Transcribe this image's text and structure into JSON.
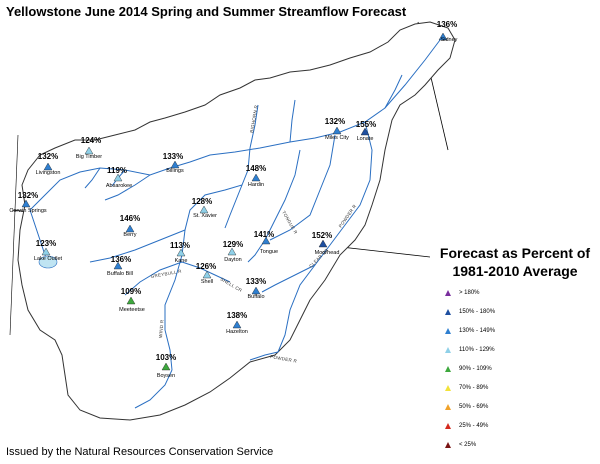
{
  "title": "Yellowstone June 2014 Spring and Summer Streamflow Forecast",
  "footer": "Issued by the Natural Resources Conservation Service",
  "legend": {
    "title_line1": "Forecast as Percent of",
    "title_line2": "1981-2010 Average",
    "items": [
      {
        "label": "> 180%",
        "color": "#7a2e9e"
      },
      {
        "label": "150% - 180%",
        "color": "#1e4fa0"
      },
      {
        "label": "130% - 149%",
        "color": "#2f7fd0"
      },
      {
        "label": "110% - 129%",
        "color": "#8fd0e8"
      },
      {
        "label": "90% - 109%",
        "color": "#3da83d"
      },
      {
        "label": "70% - 89%",
        "color": "#f2e23a"
      },
      {
        "label": "50% - 69%",
        "color": "#f0a22a"
      },
      {
        "label": "25% - 49%",
        "color": "#d42a1e"
      },
      {
        "label": "< 25%",
        "color": "#7a1414"
      }
    ]
  },
  "sites": [
    {
      "name": "Sidney",
      "percent": "136%",
      "category": 2
    },
    {
      "name": "Miles City",
      "percent": "132%",
      "category": 2
    },
    {
      "name": "Lonate",
      "percent": "155%",
      "category": 1
    },
    {
      "name": "Big Timber",
      "percent": "124%",
      "category": 3
    },
    {
      "name": "Livingston",
      "percent": "132%",
      "category": 2
    },
    {
      "name": "Absarokee",
      "percent": "119%",
      "category": 3
    },
    {
      "name": "Billings",
      "percent": "133%",
      "category": 2
    },
    {
      "name": "Hardin",
      "percent": "148%",
      "category": 2
    },
    {
      "name": "Corwin Springs",
      "percent": "132%",
      "category": 2
    },
    {
      "name": "St. Xavier",
      "percent": "128%",
      "category": 3
    },
    {
      "name": "Berry",
      "percent": "146%",
      "category": 2
    },
    {
      "name": "Lake Outlet",
      "percent": "123%",
      "category": 3
    },
    {
      "name": "Kane",
      "percent": "113%",
      "category": 3
    },
    {
      "name": "Dayton",
      "percent": "129%",
      "category": 3
    },
    {
      "name": "Tongue",
      "percent": "141%",
      "category": 2
    },
    {
      "name": "Moorhead",
      "percent": "152%",
      "category": 1
    },
    {
      "name": "Buffalo Bill",
      "percent": "136%",
      "category": 2
    },
    {
      "name": "Shell",
      "percent": "126%",
      "category": 3
    },
    {
      "name": "Meeteetse",
      "percent": "109%",
      "category": 4
    },
    {
      "name": "Buffalo",
      "percent": "133%",
      "category": 2
    },
    {
      "name": "Hazelton",
      "percent": "138%",
      "category": 2
    },
    {
      "name": "Boysen",
      "percent": "103%",
      "category": 4
    }
  ],
  "rivers": [
    "BIGHORN R",
    "TONGUE R",
    "POWDER R",
    "CLEAR CR",
    "GREYBULL R",
    "SHELL CR",
    "WIND R",
    "POWDER R"
  ]
}
